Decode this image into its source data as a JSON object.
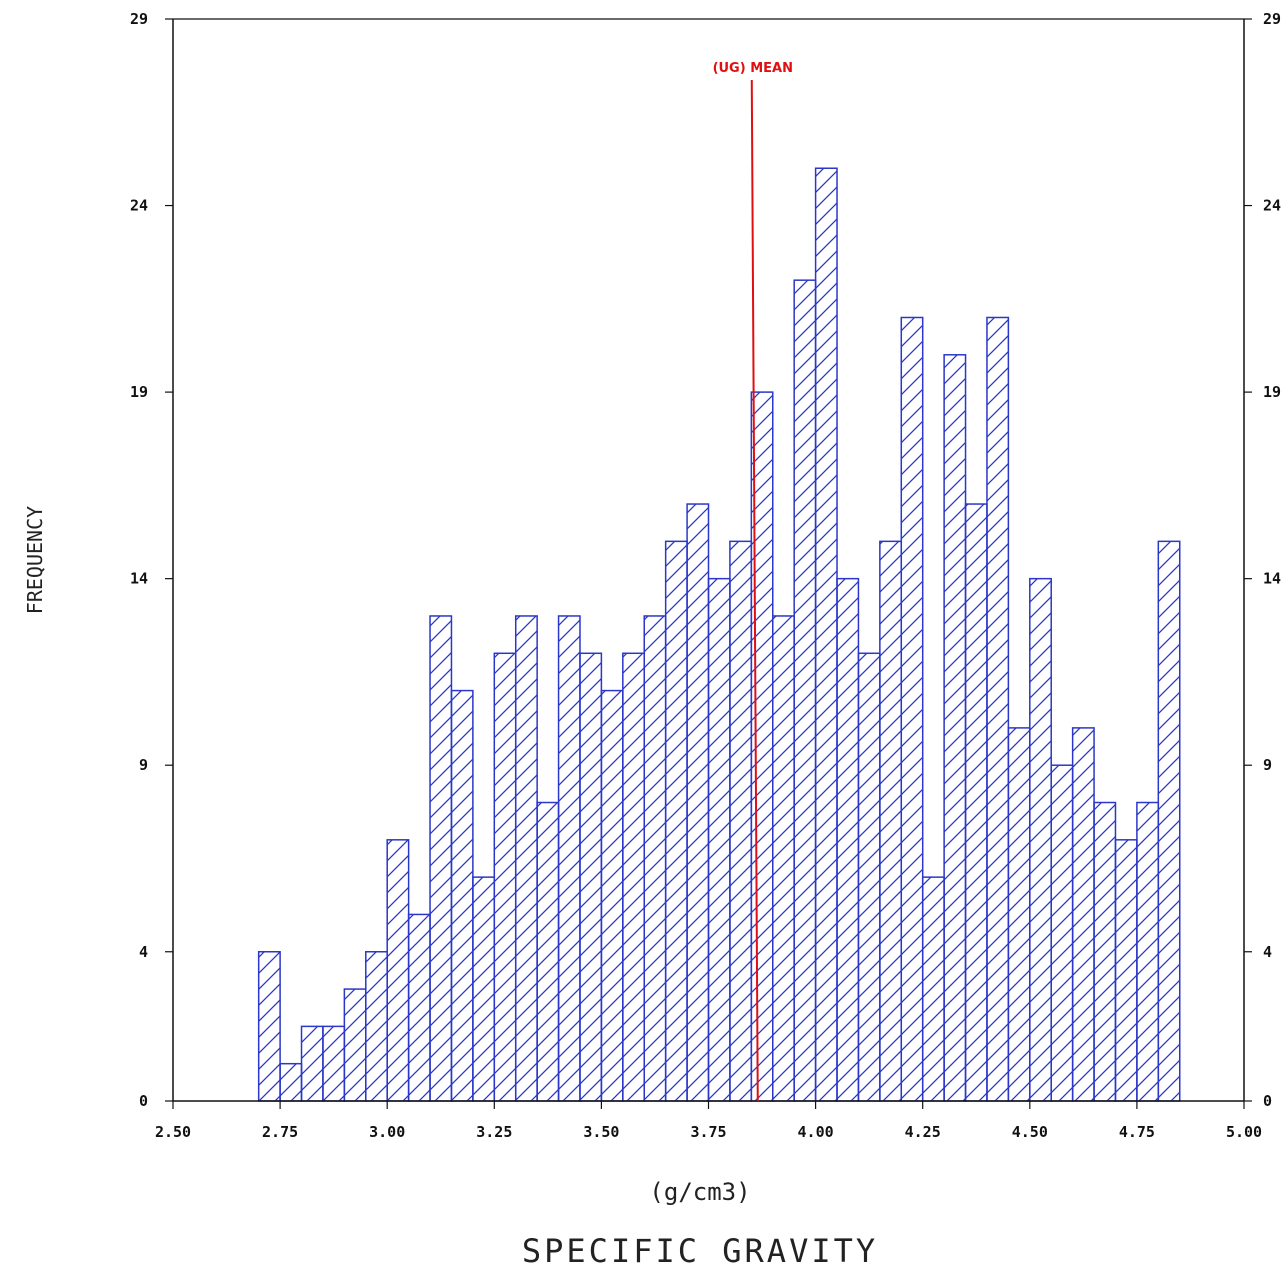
{
  "chart_data": {
    "type": "bar",
    "title": "SPECIFIC GRAVITY",
    "xlabel": "(g/cm3)",
    "ylabel": "FREQUENCY",
    "xlim": [
      2.5,
      5.0
    ],
    "ylim": [
      0,
      29
    ],
    "x_ticks": [
      "2.50",
      "2.75",
      "3.00",
      "3.25",
      "3.50",
      "3.75",
      "4.00",
      "4.25",
      "4.50",
      "4.75",
      "5.00"
    ],
    "y_ticks": [
      "0",
      "4",
      "9",
      "14",
      "19",
      "24",
      "29"
    ],
    "bin_width": 0.05,
    "bins_start": [
      2.7,
      2.75,
      2.8,
      2.85,
      2.9,
      2.95,
      3.0,
      3.05,
      3.1,
      3.15,
      3.2,
      3.25,
      3.3,
      3.35,
      3.4,
      3.45,
      3.5,
      3.55,
      3.6,
      3.65,
      3.7,
      3.75,
      3.8,
      3.85,
      3.9,
      3.95,
      4.0,
      4.05,
      4.1,
      4.15,
      4.2,
      4.25,
      4.3,
      4.35,
      4.4,
      4.45,
      4.5,
      4.55,
      4.6,
      4.65,
      4.7,
      4.75,
      4.8
    ],
    "values": [
      4,
      1,
      2,
      2,
      3,
      4,
      7,
      5,
      13,
      11,
      6,
      12,
      13,
      8,
      13,
      12,
      11,
      12,
      13,
      15,
      16,
      14,
      15,
      19,
      13,
      22,
      25,
      14,
      12,
      15,
      21,
      6,
      20,
      16,
      21,
      10,
      14,
      9,
      10,
      8,
      7,
      8,
      15
    ],
    "mean": {
      "label": "(UG) MEAN",
      "value": 3.865
    },
    "colors": {
      "bars": "#2a37c8",
      "mean_line": "#e01010",
      "axes": "#111111"
    }
  }
}
